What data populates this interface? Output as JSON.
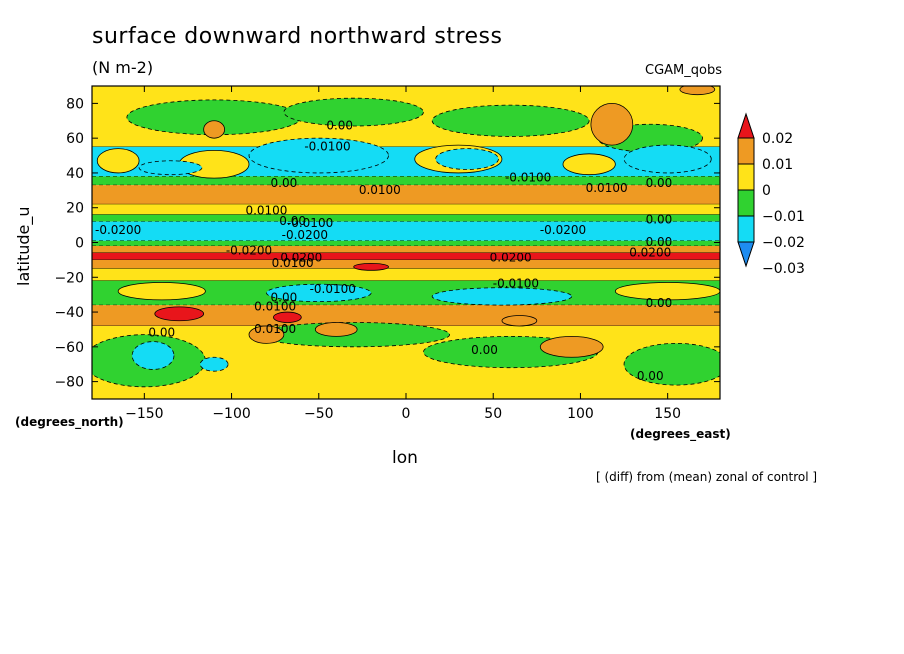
{
  "chart_data": {
    "type": "heatmap",
    "title": "surface downward northward stress",
    "units": "(N m-2)",
    "model_label": "CGAM_qobs",
    "xlabel": "lon",
    "ylabel": "latitude_u",
    "x_units": "(degrees_east)",
    "y_units": "(degrees_north)",
    "note": "[ (diff) from (mean) zonal of control ]",
    "xlim": [
      -180,
      180
    ],
    "ylim": [
      -90,
      90
    ],
    "x_ticks": [
      -150,
      -100,
      -50,
      0,
      50,
      100,
      150
    ],
    "x_tick_labels": [
      "−150",
      "−100",
      "−50",
      "0",
      "50",
      "100",
      "150"
    ],
    "y_ticks": [
      80,
      60,
      40,
      20,
      0,
      -20,
      -40,
      -60,
      -80
    ],
    "y_tick_labels": [
      "80",
      "60",
      "40",
      "20",
      "0",
      "−20",
      "−40",
      "−60",
      "−80"
    ],
    "colorbar": {
      "labels": [
        "0.02",
        "0.01",
        "0",
        "−0.01",
        "−0.02",
        "−0.03"
      ],
      "bands": [
        {
          "lo": 0.02,
          "hi": null,
          "color": "#e8151b"
        },
        {
          "lo": 0.01,
          "hi": 0.02,
          "color": "#ee9a23"
        },
        {
          "lo": 0.0,
          "hi": 0.01,
          "color": "#ffe319"
        },
        {
          "lo": -0.01,
          "hi": 0.0,
          "color": "#30d230"
        },
        {
          "lo": -0.02,
          "hi": -0.01,
          "color": "#14dcf5"
        },
        {
          "lo": null,
          "hi": -0.02,
          "color": "#1e8cf0"
        }
      ]
    },
    "zonal_bands": [
      {
        "lat": [
          90,
          55
        ],
        "level": "zero_pos"
      },
      {
        "lat": [
          55,
          38
        ],
        "level": "neg1"
      },
      {
        "lat": [
          38,
          33
        ],
        "level": "zero_neg"
      },
      {
        "lat": [
          33,
          22
        ],
        "level": "pos1"
      },
      {
        "lat": [
          22,
          16
        ],
        "level": "zero_pos"
      },
      {
        "lat": [
          16,
          12
        ],
        "level": "zero_neg"
      },
      {
        "lat": [
          12,
          1
        ],
        "level": "neg1"
      },
      {
        "lat": [
          1,
          -2
        ],
        "level": "zero_neg"
      },
      {
        "lat": [
          -2,
          -6
        ],
        "level": "pos1"
      },
      {
        "lat": [
          -6,
          -10
        ],
        "level": "pos2"
      },
      {
        "lat": [
          -10,
          -15
        ],
        "level": "pos1"
      },
      {
        "lat": [
          -15,
          -22
        ],
        "level": "zero_pos"
      },
      {
        "lat": [
          -22,
          -36
        ],
        "level": "zero_neg"
      },
      {
        "lat": [
          -36,
          -48
        ],
        "level": "pos1"
      },
      {
        "lat": [
          -48,
          -90
        ],
        "level": "zero_pos"
      }
    ],
    "features": [
      {
        "shape": "ellipse",
        "lon": -110,
        "lat": 72,
        "rlon": 50,
        "rlat": 10,
        "level": "zero_neg"
      },
      {
        "shape": "ellipse",
        "lon": -30,
        "lat": 75,
        "rlon": 40,
        "rlat": 8,
        "level": "zero_neg"
      },
      {
        "shape": "ellipse",
        "lon": 60,
        "lat": 70,
        "rlon": 45,
        "rlat": 9,
        "level": "zero_neg"
      },
      {
        "shape": "ellipse",
        "lon": 140,
        "lat": 60,
        "rlon": 30,
        "rlat": 8,
        "level": "zero_neg"
      },
      {
        "shape": "ellipse",
        "lon": -110,
        "lat": 65,
        "rlon": 6,
        "rlat": 5,
        "level": "pos1"
      },
      {
        "shape": "ellipse",
        "lon": 118,
        "lat": 68,
        "rlon": 12,
        "rlat": 12,
        "level": "pos1"
      },
      {
        "shape": "ellipse",
        "lon": 167,
        "lat": 88,
        "rlon": 10,
        "rlat": 3,
        "level": "pos1"
      },
      {
        "shape": "ellipse",
        "lon": -165,
        "lat": 47,
        "rlon": 12,
        "rlat": 7,
        "level": "zero_pos"
      },
      {
        "shape": "ellipse",
        "lon": -110,
        "lat": 45,
        "rlon": 20,
        "rlat": 8,
        "level": "zero_pos"
      },
      {
        "shape": "ellipse",
        "lon": 30,
        "lat": 48,
        "rlon": 25,
        "rlat": 8,
        "level": "zero_pos"
      },
      {
        "shape": "ellipse",
        "lon": 105,
        "lat": 45,
        "rlon": 15,
        "rlat": 6,
        "level": "zero_pos"
      },
      {
        "shape": "ellipse",
        "lon": -50,
        "lat": 50,
        "rlon": 40,
        "rlat": 10,
        "level": "neg1"
      },
      {
        "shape": "ellipse",
        "lon": -135,
        "lat": 43,
        "rlon": 18,
        "rlat": 4,
        "level": "neg1"
      },
      {
        "shape": "ellipse",
        "lon": 35,
        "lat": 48,
        "rlon": 18,
        "rlat": 6,
        "level": "neg1"
      },
      {
        "shape": "ellipse",
        "lon": 150,
        "lat": 48,
        "rlon": 25,
        "rlat": 8,
        "level": "neg1"
      },
      {
        "shape": "ellipse",
        "lon": -130,
        "lat": -41,
        "rlon": 14,
        "rlat": 4,
        "level": "pos2"
      },
      {
        "shape": "ellipse",
        "lon": -68,
        "lat": -43,
        "rlon": 8,
        "rlat": 3,
        "level": "pos2"
      },
      {
        "shape": "ellipse",
        "lon": -20,
        "lat": -14,
        "rlon": 10,
        "rlat": 2,
        "level": "pos2"
      },
      {
        "shape": "ellipse",
        "lon": -140,
        "lat": -28,
        "rlon": 25,
        "rlat": 5,
        "level": "zero_pos"
      },
      {
        "shape": "ellipse",
        "lon": 150,
        "lat": -28,
        "rlon": 30,
        "rlat": 5,
        "level": "zero_pos"
      },
      {
        "shape": "ellipse",
        "lon": -50,
        "lat": -29,
        "rlon": 30,
        "rlat": 5,
        "level": "neg1"
      },
      {
        "shape": "ellipse",
        "lon": 55,
        "lat": -31,
        "rlon": 40,
        "rlat": 5,
        "level": "neg1"
      },
      {
        "shape": "ellipse",
        "lon": -30,
        "lat": -53,
        "rlon": 55,
        "rlat": 7,
        "level": "zero_neg"
      },
      {
        "shape": "ellipse",
        "lon": 60,
        "lat": -63,
        "rlon": 50,
        "rlat": 9,
        "level": "zero_neg"
      },
      {
        "shape": "ellipse",
        "lon": 155,
        "lat": -70,
        "rlon": 30,
        "rlat": 12,
        "level": "zero_neg"
      },
      {
        "shape": "ellipse",
        "lon": -150,
        "lat": -68,
        "rlon": 35,
        "rlat": 15,
        "level": "zero_neg"
      },
      {
        "shape": "ellipse",
        "lon": -145,
        "lat": -65,
        "rlon": 12,
        "rlat": 8,
        "level": "neg1"
      },
      {
        "shape": "ellipse",
        "lon": -110,
        "lat": -70,
        "rlon": 8,
        "rlat": 4,
        "level": "neg1"
      },
      {
        "shape": "ellipse",
        "lon": -80,
        "lat": -53,
        "rlon": 10,
        "rlat": 5,
        "level": "pos1"
      },
      {
        "shape": "ellipse",
        "lon": 95,
        "lat": -60,
        "rlon": 18,
        "rlat": 6,
        "level": "pos1"
      },
      {
        "shape": "ellipse",
        "lon": 65,
        "lat": -45,
        "rlon": 10,
        "rlat": 3,
        "level": "pos1"
      },
      {
        "shape": "ellipse",
        "lon": -40,
        "lat": -50,
        "rlon": 12,
        "rlat": 4,
        "level": "pos1"
      }
    ],
    "contour_labels": [
      {
        "text": "0.00",
        "lon": -38,
        "lat": 67
      },
      {
        "text": "-0.0100",
        "lon": -45,
        "lat": 55
      },
      {
        "text": "0.00",
        "lon": -70,
        "lat": 34
      },
      {
        "text": "0.0100",
        "lon": -15,
        "lat": 30
      },
      {
        "text": "-0.0100",
        "lon": 70,
        "lat": 37
      },
      {
        "text": "0.0100",
        "lon": 115,
        "lat": 31
      },
      {
        "text": "0.00",
        "lon": 145,
        "lat": 34
      },
      {
        "text": "0.0100",
        "lon": -80,
        "lat": 18
      },
      {
        "text": "0.00",
        "lon": -65,
        "lat": 12
      },
      {
        "text": "-0.0100",
        "lon": -55,
        "lat": 11
      },
      {
        "text": "0.00",
        "lon": 145,
        "lat": 13
      },
      {
        "text": "-0.0200",
        "lon": -165,
        "lat": 7
      },
      {
        "text": "-0.0200",
        "lon": -58,
        "lat": 4
      },
      {
        "text": "-0.0200",
        "lon": 90,
        "lat": 7
      },
      {
        "text": "0.00",
        "lon": 145,
        "lat": 0
      },
      {
        "text": "-0.0200",
        "lon": -90,
        "lat": -5
      },
      {
        "text": "0.0200",
        "lon": -60,
        "lat": -9
      },
      {
        "text": "0.0100",
        "lon": -65,
        "lat": -12
      },
      {
        "text": "0.0200",
        "lon": 60,
        "lat": -9
      },
      {
        "text": "0.0200",
        "lon": 140,
        "lat": -6
      },
      {
        "text": "-0.0100",
        "lon": -42,
        "lat": -27
      },
      {
        "text": "-0.0100",
        "lon": 63,
        "lat": -24
      },
      {
        "text": "0.00",
        "lon": -70,
        "lat": -32
      },
      {
        "text": "0.0100",
        "lon": -75,
        "lat": -37
      },
      {
        "text": "0.00",
        "lon": 145,
        "lat": -35
      },
      {
        "text": "0.0100",
        "lon": -75,
        "lat": -50
      },
      {
        "text": "0.00",
        "lon": -140,
        "lat": -52
      },
      {
        "text": "0.00",
        "lon": 45,
        "lat": -62
      },
      {
        "text": "0.00",
        "lon": 140,
        "lat": -77
      }
    ]
  }
}
